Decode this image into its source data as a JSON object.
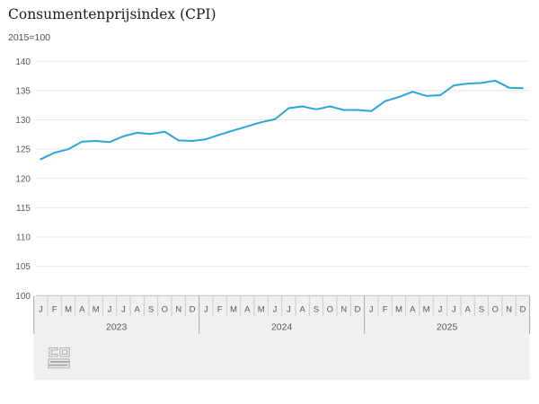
{
  "chart": {
    "title": "Consumentenprijsindex (CPI)",
    "subtitle": "2015=100"
  },
  "chart_data": {
    "type": "line",
    "title": "Consumentenprijsindex (CPI)",
    "subtitle": "2015=100",
    "month_letters": [
      "J",
      "F",
      "M",
      "A",
      "M",
      "J",
      "J",
      "A",
      "S",
      "O",
      "N",
      "D"
    ],
    "years": [
      "2023",
      "2024",
      "2025"
    ],
    "yticks": [
      100,
      105,
      110,
      115,
      120,
      125,
      130,
      135,
      140
    ],
    "ylim": [
      100,
      140
    ],
    "grid": "horizontal",
    "legend": "none",
    "series": [
      {
        "name": "Consumentenprijsindex (2015=100)",
        "color": "#29a5dc",
        "values": [
          123.3,
          124.4,
          125.0,
          126.3,
          126.4,
          126.2,
          127.2,
          127.8,
          127.6,
          128.0,
          126.5,
          126.4,
          126.7,
          127.5,
          128.2,
          128.9,
          129.6,
          130.1,
          132.0,
          132.3,
          131.8,
          132.3,
          131.7,
          131.7,
          131.5,
          133.2,
          133.9,
          134.8,
          134.1,
          134.2,
          135.9,
          136.2,
          136.3,
          136.7,
          135.5,
          135.4
        ]
      }
    ]
  },
  "colors": {
    "line": "#29a5dc",
    "gridline": "#e8e8e8",
    "axis_line": "#bdbdbd",
    "band_bg": "#f0f0f0",
    "month_separator": "#cdcdcd",
    "year_separator": "#a9a9a9",
    "tick_text": "#595959",
    "logo": "#a9a9a9"
  },
  "logo": {
    "name": "cbs-logo"
  }
}
